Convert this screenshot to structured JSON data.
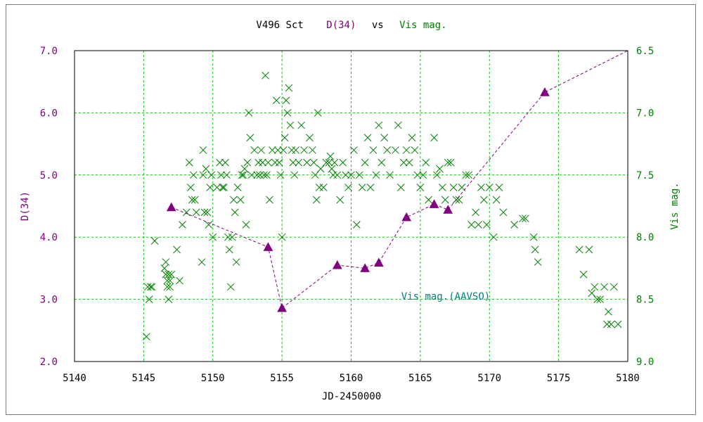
{
  "colors": {
    "purple": "#800080",
    "green": "#008000",
    "teal": "#008080",
    "grid": "#00cc00",
    "black": "#000000"
  },
  "chart_data": {
    "type": "scatter",
    "title": {
      "part1": "V496 Sct",
      "part2": "D(34)",
      "part3": "vs",
      "part4": "Vis mag."
    },
    "xlabel": "JD-2450000",
    "ylabel_left": "D(34)",
    "ylabel_right": "Vis mag.",
    "annotation": "Vis mag.(AAVSO)",
    "xlim": [
      5140,
      5180
    ],
    "ylim_left": [
      2.0,
      7.0
    ],
    "ylim_right_inverted": [
      9.0,
      6.5
    ],
    "grid": true,
    "x_ticks": [
      "5140",
      "5145",
      "5150",
      "5155",
      "5160",
      "5165",
      "5170",
      "5175",
      "5180"
    ],
    "y_left_ticks": [
      "2.0",
      "3.0",
      "4.0",
      "5.0",
      "6.0",
      "7.0"
    ],
    "y_right_ticks": [
      "9.0",
      "8.5",
      "8.0",
      "7.5",
      "7.0",
      "6.5"
    ],
    "series": [
      {
        "name": "D(34)",
        "axis": "left",
        "marker": "filled-triangle",
        "line": "dashed",
        "points": [
          [
            5147,
            4.48
          ],
          [
            5154,
            3.84
          ],
          [
            5155,
            2.86
          ],
          [
            5159,
            3.55
          ],
          [
            5161,
            3.5
          ],
          [
            5162,
            3.59
          ],
          [
            5164,
            4.32
          ],
          [
            5166,
            4.53
          ],
          [
            5167,
            4.44
          ],
          [
            5174,
            6.33
          ],
          [
            5180,
            7.0
          ]
        ]
      },
      {
        "name": "Vis mag.(AAVSO)",
        "axis": "right",
        "marker": "x",
        "points": [
          [
            5145.2,
            8.8
          ],
          [
            5145.3,
            8.4
          ],
          [
            5145.4,
            8.5
          ],
          [
            5145.5,
            8.4
          ],
          [
            5145.6,
            8.4
          ],
          [
            5145.8,
            8.03
          ],
          [
            5146.5,
            8.25
          ],
          [
            5146.6,
            8.2
          ],
          [
            5146.6,
            8.3
          ],
          [
            5146.7,
            8.35
          ],
          [
            5146.7,
            8.4
          ],
          [
            5146.8,
            8.5
          ],
          [
            5146.8,
            8.3
          ],
          [
            5146.9,
            8.35
          ],
          [
            5146.9,
            8.4
          ],
          [
            5147.0,
            8.3
          ],
          [
            5147.4,
            8.1
          ],
          [
            5147.6,
            8.35
          ],
          [
            5147.8,
            7.9
          ],
          [
            5148.1,
            7.8
          ],
          [
            5148.3,
            7.4
          ],
          [
            5148.4,
            7.6
          ],
          [
            5148.5,
            7.7
          ],
          [
            5148.6,
            7.5
          ],
          [
            5148.7,
            7.7
          ],
          [
            5148.8,
            7.8
          ],
          [
            5149.2,
            8.2
          ],
          [
            5149.3,
            7.3
          ],
          [
            5149.3,
            7.5
          ],
          [
            5149.4,
            7.8
          ],
          [
            5149.5,
            7.45
          ],
          [
            5149.6,
            7.8
          ],
          [
            5149.7,
            7.9
          ],
          [
            5149.8,
            7.6
          ],
          [
            5149.9,
            7.5
          ],
          [
            5150.0,
            8.0
          ],
          [
            5150.3,
            7.6
          ],
          [
            5150.5,
            7.4
          ],
          [
            5150.6,
            7.5
          ],
          [
            5150.7,
            7.6
          ],
          [
            5150.8,
            7.6
          ],
          [
            5150.9,
            7.4
          ],
          [
            5151.0,
            7.5
          ],
          [
            5151.1,
            8.0
          ],
          [
            5151.2,
            8.1
          ],
          [
            5151.3,
            8.4
          ],
          [
            5151.4,
            8.0
          ],
          [
            5151.5,
            7.7
          ],
          [
            5151.6,
            7.8
          ],
          [
            5151.7,
            8.2
          ],
          [
            5151.8,
            7.6
          ],
          [
            5152.0,
            7.7
          ],
          [
            5152.1,
            7.5
          ],
          [
            5152.2,
            7.5
          ],
          [
            5152.3,
            7.45
          ],
          [
            5152.4,
            7.9
          ],
          [
            5152.5,
            7.4
          ],
          [
            5152.6,
            7.0
          ],
          [
            5152.7,
            7.2
          ],
          [
            5152.8,
            7.5
          ],
          [
            5153.0,
            7.3
          ],
          [
            5153.2,
            7.5
          ],
          [
            5153.3,
            7.4
          ],
          [
            5153.4,
            7.5
          ],
          [
            5153.5,
            7.3
          ],
          [
            5153.6,
            7.4
          ],
          [
            5153.7,
            7.5
          ],
          [
            5153.8,
            6.7
          ],
          [
            5153.9,
            7.5
          ],
          [
            5154.0,
            7.4
          ],
          [
            5154.1,
            7.7
          ],
          [
            5154.3,
            7.3
          ],
          [
            5154.5,
            7.4
          ],
          [
            5154.6,
            6.9
          ],
          [
            5154.7,
            7.3
          ],
          [
            5154.8,
            7.4
          ],
          [
            5154.9,
            7.5
          ],
          [
            5155.0,
            8.0
          ],
          [
            5155.1,
            7.3
          ],
          [
            5155.2,
            7.2
          ],
          [
            5155.3,
            6.9
          ],
          [
            5155.4,
            7.0
          ],
          [
            5155.5,
            6.8
          ],
          [
            5155.6,
            7.1
          ],
          [
            5155.7,
            7.3
          ],
          [
            5155.8,
            7.4
          ],
          [
            5155.9,
            7.5
          ],
          [
            5156.0,
            7.3
          ],
          [
            5156.2,
            7.4
          ],
          [
            5156.4,
            7.1
          ],
          [
            5156.6,
            7.3
          ],
          [
            5156.8,
            7.4
          ],
          [
            5157.0,
            7.2
          ],
          [
            5157.2,
            7.3
          ],
          [
            5157.3,
            7.4
          ],
          [
            5157.4,
            7.5
          ],
          [
            5157.5,
            7.7
          ],
          [
            5157.6,
            7.0
          ],
          [
            5157.7,
            7.6
          ],
          [
            5157.8,
            7.45
          ],
          [
            5158.0,
            7.6
          ],
          [
            5158.2,
            7.4
          ],
          [
            5158.4,
            7.4
          ],
          [
            5158.5,
            7.35
          ],
          [
            5158.6,
            7.45
          ],
          [
            5158.7,
            7.5
          ],
          [
            5158.8,
            7.4
          ],
          [
            5159.0,
            7.5
          ],
          [
            5159.2,
            7.7
          ],
          [
            5159.4,
            7.4
          ],
          [
            5159.6,
            7.5
          ],
          [
            5159.8,
            7.6
          ],
          [
            5160.0,
            7.5
          ],
          [
            5160.2,
            7.3
          ],
          [
            5160.4,
            7.9
          ],
          [
            5160.6,
            7.5
          ],
          [
            5160.8,
            7.6
          ],
          [
            5161.0,
            7.4
          ],
          [
            5161.2,
            7.2
          ],
          [
            5161.4,
            7.6
          ],
          [
            5161.6,
            7.3
          ],
          [
            5161.8,
            7.5
          ],
          [
            5162.0,
            7.1
          ],
          [
            5162.2,
            7.4
          ],
          [
            5162.4,
            7.2
          ],
          [
            5162.6,
            7.3
          ],
          [
            5162.8,
            7.5
          ],
          [
            5163.2,
            7.3
          ],
          [
            5163.4,
            7.1
          ],
          [
            5163.6,
            7.6
          ],
          [
            5163.8,
            7.4
          ],
          [
            5164.0,
            7.3
          ],
          [
            5164.2,
            7.4
          ],
          [
            5164.4,
            7.2
          ],
          [
            5164.6,
            7.3
          ],
          [
            5164.8,
            7.5
          ],
          [
            5165.0,
            7.6
          ],
          [
            5165.2,
            7.5
          ],
          [
            5165.4,
            7.4
          ],
          [
            5165.6,
            7.7
          ],
          [
            5166.0,
            7.2
          ],
          [
            5166.2,
            7.5
          ],
          [
            5166.4,
            7.45
          ],
          [
            5166.6,
            7.6
          ],
          [
            5166.8,
            7.7
          ],
          [
            5167.0,
            7.4
          ],
          [
            5167.2,
            7.4
          ],
          [
            5167.4,
            7.6
          ],
          [
            5167.6,
            7.7
          ],
          [
            5167.8,
            7.7
          ],
          [
            5168.0,
            7.6
          ],
          [
            5168.3,
            7.5
          ],
          [
            5168.5,
            7.5
          ],
          [
            5168.7,
            7.9
          ],
          [
            5169.0,
            7.8
          ],
          [
            5169.2,
            7.9
          ],
          [
            5169.4,
            7.6
          ],
          [
            5169.6,
            7.7
          ],
          [
            5169.8,
            7.9
          ],
          [
            5170.0,
            7.6
          ],
          [
            5170.3,
            8.0
          ],
          [
            5170.5,
            7.7
          ],
          [
            5170.7,
            7.6
          ],
          [
            5171.0,
            7.8
          ],
          [
            5171.8,
            7.9
          ],
          [
            5172.4,
            7.85
          ],
          [
            5172.6,
            7.85
          ],
          [
            5173.2,
            8.0
          ],
          [
            5173.3,
            8.1
          ],
          [
            5173.5,
            8.2
          ],
          [
            5176.5,
            8.1
          ],
          [
            5176.8,
            8.3
          ],
          [
            5177.2,
            8.1
          ],
          [
            5177.4,
            8.45
          ],
          [
            5177.6,
            8.4
          ],
          [
            5177.8,
            8.5
          ],
          [
            5178.0,
            8.5
          ],
          [
            5178.3,
            8.4
          ],
          [
            5178.5,
            8.7
          ],
          [
            5178.6,
            8.6
          ],
          [
            5178.8,
            8.7
          ],
          [
            5179.0,
            8.4
          ],
          [
            5179.3,
            8.7
          ]
        ]
      }
    ]
  }
}
